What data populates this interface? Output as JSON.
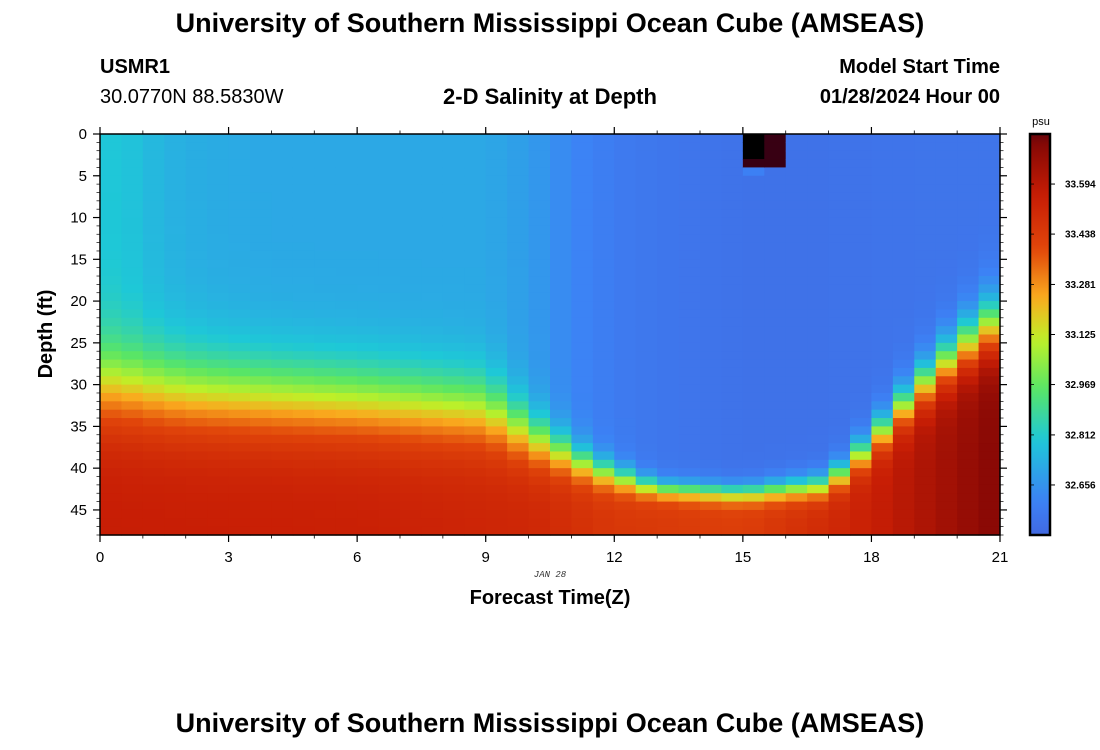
{
  "header": {
    "title": "University of Southern Mississippi Ocean Cube (AMSEAS)",
    "station": "USMR1",
    "coords": "30.0770N  88.5830W",
    "subtitle": "2-D Salinity at Depth",
    "model_start_label": "Model Start Time",
    "model_start_value": "01/28/2024 Hour 00"
  },
  "footer": {
    "title": "University of Southern Mississippi Ocean Cube (AMSEAS)"
  },
  "chart_data": {
    "type": "heatmap",
    "title": "2-D Salinity at Depth",
    "xlabel": "Forecast Time(Z)",
    "ylabel": "Depth (ft)",
    "date_label": "JAN 28",
    "xlim": [
      0,
      21
    ],
    "ylim": [
      0,
      48
    ],
    "x_ticks": [
      0,
      3,
      6,
      9,
      12,
      15,
      18,
      21
    ],
    "y_ticks": [
      0,
      5,
      10,
      15,
      20,
      25,
      30,
      35,
      40,
      45
    ],
    "colorbar": {
      "unit": "psu",
      "range": [
        32.5,
        33.75
      ],
      "ticks": [
        "33.594",
        "33.438",
        "33.281",
        "33.125",
        "32.969",
        "32.812",
        "32.656"
      ]
    },
    "model": {
      "cell_hours": 0.5,
      "cell_depth_ft": 1,
      "surface_profile": [
        {
          "t": 0,
          "s": 32.8
        },
        {
          "t": 0.75,
          "s": 32.78
        },
        {
          "t": 1.5,
          "s": 32.74
        },
        {
          "t": 2.5,
          "s": 32.72
        },
        {
          "t": 4,
          "s": 32.71
        },
        {
          "t": 6,
          "s": 32.71
        },
        {
          "t": 9,
          "s": 32.71
        },
        {
          "t": 10,
          "s": 32.68
        },
        {
          "t": 11,
          "s": 32.62
        },
        {
          "t": 12,
          "s": 32.58
        },
        {
          "t": 13,
          "s": 32.56
        },
        {
          "t": 15,
          "s": 32.54
        },
        {
          "t": 17,
          "s": 32.54
        },
        {
          "t": 19,
          "s": 32.55
        },
        {
          "t": 21,
          "s": 32.55
        }
      ],
      "bottom_profile": [
        {
          "t": 0,
          "s": 33.56
        },
        {
          "t": 6,
          "s": 33.55
        },
        {
          "t": 10,
          "s": 33.52
        },
        {
          "t": 12,
          "s": 33.45
        },
        {
          "t": 15,
          "s": 33.42
        },
        {
          "t": 18,
          "s": 33.55
        },
        {
          "t": 21,
          "s": 33.72
        }
      ],
      "halocline_depth_ft": [
        {
          "t": 0,
          "d": 30
        },
        {
          "t": 2,
          "d": 31
        },
        {
          "t": 6,
          "d": 32
        },
        {
          "t": 9,
          "d": 33
        },
        {
          "t": 10,
          "d": 36
        },
        {
          "t": 11.5,
          "d": 40
        },
        {
          "t": 13,
          "d": 42.5
        },
        {
          "t": 15,
          "d": 43
        },
        {
          "t": 17,
          "d": 42
        },
        {
          "t": 18,
          "d": 37
        },
        {
          "t": 19,
          "d": 31
        },
        {
          "t": 20,
          "d": 26
        },
        {
          "t": 21,
          "d": 22
        }
      ],
      "transition_width_ft": [
        {
          "t": 0,
          "w": 14
        },
        {
          "t": 6,
          "w": 13
        },
        {
          "t": 9,
          "w": 12
        },
        {
          "t": 11,
          "w": 6
        },
        {
          "t": 13,
          "w": 3
        },
        {
          "t": 15,
          "w": 3
        },
        {
          "t": 17,
          "w": 4
        },
        {
          "t": 19,
          "w": 7
        },
        {
          "t": 21,
          "w": 10
        }
      ],
      "anomaly_cells": [
        {
          "t": 15.0,
          "d": 0,
          "s": 33.9
        },
        {
          "t": 15.5,
          "d": 0,
          "s": 33.8
        },
        {
          "t": 15.0,
          "d": 1,
          "s": 33.9
        },
        {
          "t": 15.5,
          "d": 1,
          "s": 33.8
        },
        {
          "t": 15.0,
          "d": 2,
          "s": 33.85
        },
        {
          "t": 15.5,
          "d": 2,
          "s": 33.8
        },
        {
          "t": 15.0,
          "d": 3,
          "s": 33.8
        },
        {
          "t": 15.5,
          "d": 3,
          "s": 33.8
        },
        {
          "t": 15.0,
          "d": 4,
          "s": 32.6
        }
      ]
    }
  }
}
